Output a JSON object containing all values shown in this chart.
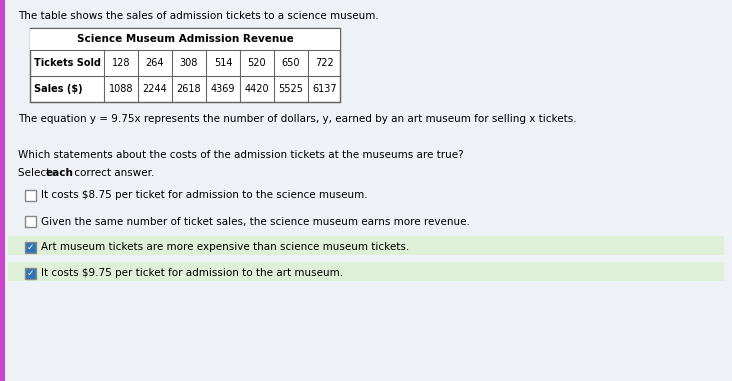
{
  "bg_color": "#dce6f1",
  "content_bg": "#e8eef5",
  "left_bar_color": "#cc44cc",
  "title_text": "The table shows the sales of admission tickets to a science museum.",
  "table_title": "Science Museum Admission Revenue",
  "table_headers": [
    "Tickets Sold",
    "128",
    "264",
    "308",
    "514",
    "520",
    "650",
    "722"
  ],
  "table_row2": [
    "Sales ($)",
    "1088",
    "2244",
    "2618",
    "4369",
    "4420",
    "5525",
    "6137"
  ],
  "equation_text": "The equation y = 9.75x represents the number of dollars, y, earned by an art museum for selling x tickets.",
  "question_text": "Which statements about the costs of the admission tickets at the museums are true?",
  "select_bold": "each",
  "select_pre": "Select ",
  "select_post": " correct answer.",
  "options": [
    {
      "checked": false,
      "text": "It costs $8.75 per ticket for admission to the science museum."
    },
    {
      "checked": false,
      "text": "Given the same number of ticket sales, the science museum earns more revenue."
    },
    {
      "checked": true,
      "text": "Art museum tickets are more expensive than science museum tickets."
    },
    {
      "checked": true,
      "text": "It costs $9.75 per ticket for admission to the art museum."
    }
  ],
  "checked_color": "#2e75b6",
  "unchecked_color": "#ffffff",
  "highlight_color": "#dff0d8",
  "font_size_body": 7.5,
  "font_size_table": 7.0,
  "font_size_table_title": 7.5
}
